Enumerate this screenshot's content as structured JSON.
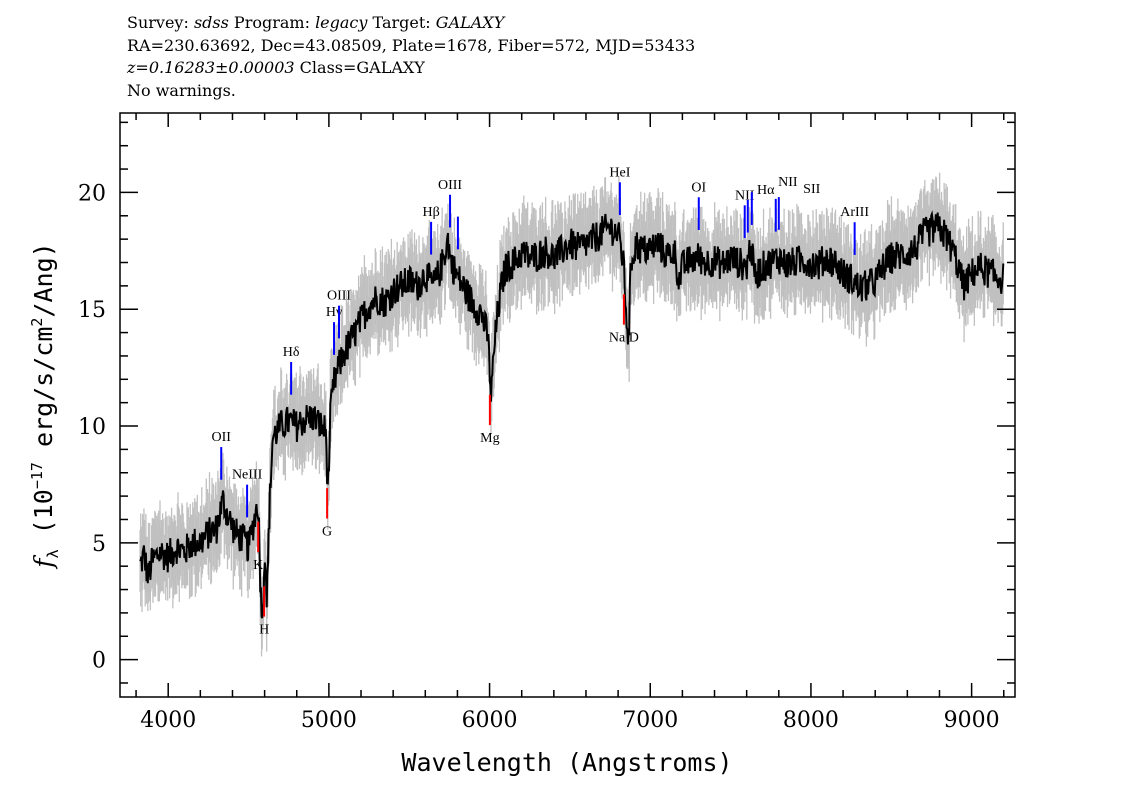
{
  "header": {
    "line1": {
      "survey_label": "Survey:",
      "survey": "sdss",
      "program_label": "Program:",
      "program": "legacy",
      "target_label": "Target:",
      "target": "GALAXY"
    },
    "line2": "RA=230.63692, Dec=43.08509, Plate=1678, Fiber=572, MJD=53433",
    "line3": {
      "redshift": "z=0.16283±0.00003",
      "class": "Class=GALAXY"
    },
    "line4": "No warnings."
  },
  "chart_data": {
    "type": "line",
    "xlabel": "Wavelength (Angstroms)",
    "ylabel": "f_λ (10^-17 erg/s/cm^2/Ang)",
    "xlim": [
      3700,
      9270
    ],
    "ylim": [
      -1.6,
      23.4
    ],
    "xticks": [
      4000,
      5000,
      6000,
      7000,
      8000,
      9000
    ],
    "yticks": [
      0,
      5,
      10,
      15,
      20
    ],
    "colors": {
      "spectrum": "#000000",
      "error_band": "#c0c0c0",
      "emission": "#0000ff",
      "absorption": "#ff0000"
    },
    "spectrum": {
      "wavelength": [
        3825,
        3850,
        3875,
        3900,
        3950,
        4000,
        4050,
        4100,
        4150,
        4200,
        4250,
        4300,
        4340,
        4380,
        4420,
        4460,
        4500,
        4530,
        4560,
        4575,
        4590,
        4600,
        4615,
        4630,
        4650,
        4700,
        4750,
        4800,
        4850,
        4900,
        4950,
        4980,
        4995,
        5010,
        5030,
        5060,
        5100,
        5150,
        5200,
        5250,
        5300,
        5350,
        5400,
        5450,
        5500,
        5550,
        5600,
        5650,
        5700,
        5740,
        5760,
        5800,
        5850,
        5900,
        5950,
        5990,
        6010,
        6025,
        6045,
        6070,
        6100,
        6150,
        6200,
        6250,
        6300,
        6350,
        6400,
        6450,
        6500,
        6550,
        6600,
        6650,
        6700,
        6750,
        6800,
        6830,
        6850,
        6865,
        6880,
        6910,
        6950,
        7000,
        7050,
        7100,
        7150,
        7180,
        7200,
        7250,
        7300,
        7350,
        7400,
        7450,
        7500,
        7550,
        7600,
        7625,
        7650,
        7700,
        7750,
        7800,
        7850,
        7900,
        7950,
        8000,
        8050,
        8100,
        8150,
        8200,
        8250,
        8300,
        8350,
        8400,
        8450,
        8500,
        8550,
        8600,
        8650,
        8700,
        8750,
        8800,
        8850,
        8900,
        8950,
        9000,
        9050,
        9100,
        9150,
        9200
      ],
      "flux": [
        4.0,
        4.5,
        3.5,
        4.2,
        4.6,
        4.4,
        4.8,
        4.6,
        5.0,
        5.0,
        5.4,
        5.6,
        6.8,
        6.0,
        5.4,
        5.2,
        4.8,
        5.8,
        6.8,
        3.0,
        1.8,
        5.0,
        2.5,
        6.5,
        9.5,
        10.0,
        10.2,
        10.0,
        10.3,
        10.4,
        10.0,
        9.8,
        7.2,
        10.5,
        11.8,
        12.5,
        13.2,
        13.8,
        14.5,
        15.2,
        15.5,
        15.3,
        15.8,
        16.0,
        16.2,
        16.0,
        16.5,
        16.0,
        16.8,
        18.0,
        17.0,
        16.4,
        15.8,
        15.2,
        14.8,
        13.8,
        11.2,
        13.0,
        14.5,
        15.8,
        16.8,
        17.0,
        17.4,
        17.2,
        17.3,
        17.5,
        17.2,
        17.5,
        17.8,
        17.6,
        17.8,
        18.0,
        18.3,
        18.5,
        18.2,
        17.2,
        15.0,
        13.5,
        17.0,
        17.8,
        17.5,
        17.6,
        17.8,
        17.3,
        17.5,
        16.2,
        16.8,
        17.1,
        17.2,
        17.0,
        17.1,
        16.9,
        17.2,
        17.0,
        16.8,
        17.8,
        16.4,
        16.8,
        17.0,
        17.2,
        16.9,
        17.0,
        17.1,
        17.0,
        16.9,
        17.2,
        17.0,
        16.5,
        16.3,
        15.9,
        16.0,
        16.2,
        16.8,
        17.2,
        17.3,
        17.4,
        17.6,
        18.2,
        18.4,
        18.5,
        18.0,
        17.2,
        16.0,
        16.5,
        16.8,
        16.6,
        16.4,
        16.3
      ]
    },
    "lines": [
      {
        "name": "OII",
        "wavelength": 4330,
        "type": "emission"
      },
      {
        "name": "NeIII",
        "wavelength": 4491,
        "type": "emission"
      },
      {
        "name": "Hδ",
        "wavelength": 4765,
        "type": "emission"
      },
      {
        "name": "Hγ",
        "wavelength": 5032,
        "type": "emission"
      },
      {
        "name": "OIII",
        "wavelength": 5063,
        "type": "emission"
      },
      {
        "name": "Hβ",
        "wavelength": 5636,
        "type": "emission"
      },
      {
        "name": "OIII",
        "wavelength": 5754,
        "type": "emission"
      },
      {
        "name": "",
        "wavelength": 5803,
        "type": "emission"
      },
      {
        "name": "HeI",
        "wavelength": 6811,
        "type": "emission"
      },
      {
        "name": "OI",
        "wavelength": 7302,
        "type": "emission"
      },
      {
        "name": "NII",
        "wavelength": 7588,
        "type": "emission"
      },
      {
        "name": "Hα",
        "wavelength": 7607,
        "type": "emission"
      },
      {
        "name": "NII",
        "wavelength": 7632,
        "type": "emission"
      },
      {
        "name": "SII",
        "wavelength": 7781,
        "type": "emission"
      },
      {
        "name": "",
        "wavelength": 7800,
        "type": "emission"
      },
      {
        "name": "ArIII",
        "wavelength": 8272,
        "type": "emission"
      },
      {
        "name": "K",
        "wavelength": 4560,
        "type": "absorption"
      },
      {
        "name": "H",
        "wavelength": 4597,
        "type": "absorption"
      },
      {
        "name": "G",
        "wavelength": 4989,
        "type": "absorption"
      },
      {
        "name": "Mg",
        "wavelength": 6002,
        "type": "absorption"
      },
      {
        "name": "Na D",
        "wavelength": 6836,
        "type": "absorption"
      }
    ]
  }
}
